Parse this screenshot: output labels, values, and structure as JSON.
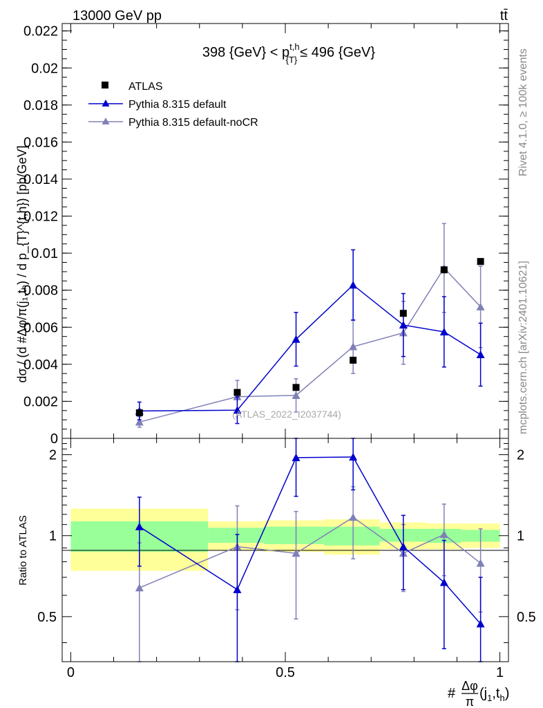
{
  "header": {
    "left_label": "13000 GeV pp",
    "right_label": "tt̄"
  },
  "side_labels": {
    "rivet": "Rivet 4.1.0, ≥ 100k events",
    "mcplots": "mcplots.cern.ch [arXiv:2401.10621]"
  },
  "chart_data": {
    "type": "scatter",
    "title": "398 {GeV} < p_{T}^{t,h} ≤ 496 {GeV}",
    "title_parts": {
      "pre": "398 {GeV} < p",
      "sup": "t,h",
      "sub": "{T}",
      "post": "≤ 496 {GeV}"
    },
    "ylabel": "dσ / (d #Δφ/π(j₁,tₕ) / d p_{T}^{t,h}) [pb/GeV]",
    "xlabel": "#Δφ/π(j₁,tₕ)",
    "xlabel_parts": {
      "prefix": "#",
      "numerator": "Δφ",
      "denominator": "π",
      "args": "(j",
      "sub1": "1",
      "comma": ",t",
      "sub2": "h",
      "close": ")"
    },
    "watermark": "(ATLAS_2022_I2037744)",
    "xlim": [
      -0.02,
      1.02
    ],
    "ylim": [
      0,
      0.0224
    ],
    "x_ticks": [
      0,
      0.5,
      1
    ],
    "x_tick_labels": [
      "0",
      "0.5",
      "1"
    ],
    "y_ticks": [
      0,
      0.002,
      0.004,
      0.006,
      0.008,
      0.01,
      0.012,
      0.014,
      0.016,
      0.018,
      0.02,
      0.022
    ],
    "y_tick_labels": [
      "0",
      "0.002",
      "0.004",
      "0.006",
      "0.008",
      "0.01",
      "0.012",
      "0.014",
      "0.016",
      "0.018",
      "0.02",
      "0.022"
    ],
    "legend": [
      "ATLAS",
      "Pythia 8.315 default",
      "Pythia 8.315 default-noCR"
    ],
    "series": [
      {
        "name": "ATLAS",
        "color": "#000000",
        "marker": "square",
        "x": [
          0.16,
          0.388,
          0.525,
          0.658,
          0.775,
          0.87,
          0.955
        ],
        "y": [
          0.00138,
          0.00248,
          0.00275,
          0.00422,
          0.00675,
          0.0091,
          0.00955
        ]
      },
      {
        "name": "Pythia 8.315 default",
        "color": "#0000cc",
        "marker": "triangle",
        "x": [
          0.16,
          0.388,
          0.525,
          0.658,
          0.775,
          0.87,
          0.955
        ],
        "y": [
          0.00148,
          0.00152,
          0.00535,
          0.00828,
          0.00612,
          0.00575,
          0.00452
        ],
        "yerr": [
          0.00048,
          0.00072,
          0.00145,
          0.0019,
          0.0017,
          0.0019,
          0.0017
        ]
      },
      {
        "name": "Pythia 8.315 default-noCR",
        "color": "#8080b8",
        "marker": "triangle",
        "x": [
          0.16,
          0.388,
          0.525,
          0.658,
          0.775,
          0.87,
          0.955
        ],
        "y": [
          0.00088,
          0.00225,
          0.00232,
          0.00495,
          0.0057,
          0.0092,
          0.0071
        ],
        "yerr": [
          0.00028,
          0.00088,
          0.0009,
          0.00145,
          0.0017,
          0.0024,
          0.0022
        ]
      }
    ],
    "ratio": {
      "ylabel": "Ratio to ATLAS",
      "ylim": [
        0.34,
        2.3
      ],
      "y_ticks": [
        0.5,
        1,
        2
      ],
      "y_tick_labels": [
        "0.5",
        "1",
        "2"
      ],
      "bins": [
        {
          "lo": 0.0,
          "hi": 0.32,
          "inner": [
            0.87,
            1.13
          ],
          "outer": [
            0.74,
            1.26
          ]
        },
        {
          "lo": 0.32,
          "hi": 0.45,
          "inner": [
            0.94,
            1.07
          ],
          "outer": [
            0.88,
            1.13
          ]
        },
        {
          "lo": 0.45,
          "hi": 0.59,
          "inner": [
            0.93,
            1.08
          ],
          "outer": [
            0.87,
            1.14
          ]
        },
        {
          "lo": 0.59,
          "hi": 0.72,
          "inner": [
            0.92,
            1.08
          ],
          "outer": [
            0.85,
            1.15
          ]
        },
        {
          "lo": 0.72,
          "hi": 0.83,
          "inner": [
            0.95,
            1.06
          ],
          "outer": [
            0.89,
            1.12
          ]
        },
        {
          "lo": 0.83,
          "hi": 0.91,
          "inner": [
            0.94,
            1.06
          ],
          "outer": [
            0.89,
            1.11
          ]
        },
        {
          "lo": 0.91,
          "hi": 1.0,
          "inner": [
            0.95,
            1.05
          ],
          "outer": [
            0.9,
            1.11
          ]
        }
      ],
      "inner_color": "#99ff99",
      "outer_color": "#ffff99",
      "series": [
        {
          "name": "Pythia 8.315 default",
          "color": "#0000cc",
          "y": [
            1.08,
            0.63,
            1.95,
            1.96,
            0.91,
            0.67,
            0.47
          ],
          "yerr": [
            0.31,
            0.38,
            0.55,
            0.48,
            0.28,
            0.29,
            0.23
          ]
        },
        {
          "name": "Pythia 8.315 default-noCR",
          "color": "#8080b8",
          "y": [
            0.64,
            0.91,
            0.86,
            1.17,
            0.86,
            1.01,
            0.79
          ],
          "yerr": [
            0.3,
            0.38,
            0.37,
            0.35,
            0.24,
            0.3,
            0.27
          ]
        }
      ]
    }
  }
}
